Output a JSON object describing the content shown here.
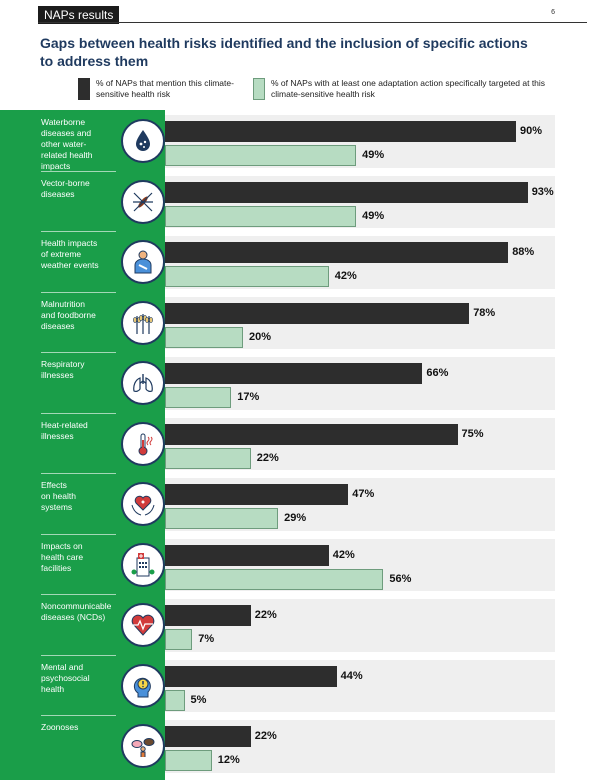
{
  "header": {
    "section": "NAPs results",
    "page": "6"
  },
  "title": "Gaps between health risks identified and the inclusion of specific actions to address them",
  "colors": {
    "dark": "#2d2d2d",
    "light": "#b7dcc2",
    "sidebar": "#1a9e49",
    "title": "#1f3a5f"
  },
  "chart_data": {
    "type": "bar",
    "orientation": "horizontal",
    "categories": [
      "Waterborne diseases and other water-related health impacts",
      "Vector-borne diseases",
      "Health impacts of extreme weather events",
      "Malnutrition and foodborne diseases",
      "Respiratory illnesses",
      "Heat-related illnesses",
      "Effects on health systems",
      "Impacts on health care facilities",
      "Noncommunicable diseases (NCDs)",
      "Mental and psychosocial health",
      "Zoonoses"
    ],
    "series": [
      {
        "name": "% of NAPs that mention this climate-sensitive health risk",
        "values": [
          90,
          93,
          88,
          78,
          66,
          75,
          47,
          42,
          22,
          44,
          22
        ]
      },
      {
        "name": "% of NAPs with at least one adaptation action specifically targeted at this climate-sensitive health risk",
        "values": [
          49,
          49,
          42,
          20,
          17,
          22,
          29,
          56,
          7,
          5,
          12
        ]
      }
    ],
    "value_labels": {
      "dark": [
        "90%",
        "93%",
        "88%",
        "78%",
        "66%",
        "75%",
        "47%",
        "42%",
        "22%",
        "44%",
        "22%"
      ],
      "light": [
        "49%",
        "49%",
        "42%",
        "20%",
        "17%",
        "22%",
        "29%",
        "56%",
        "7%",
        "5%",
        "12%"
      ]
    },
    "icons": [
      "water-drop-icon",
      "mosquito-icon",
      "person-sling-icon",
      "wheat-icon",
      "lungs-icon",
      "thermometer-icon",
      "heart-hands-icon",
      "hospital-icon",
      "heart-pulse-icon",
      "head-exclamation-icon",
      "animals-icon"
    ],
    "xlim": [
      0,
      100
    ],
    "grid": false
  }
}
